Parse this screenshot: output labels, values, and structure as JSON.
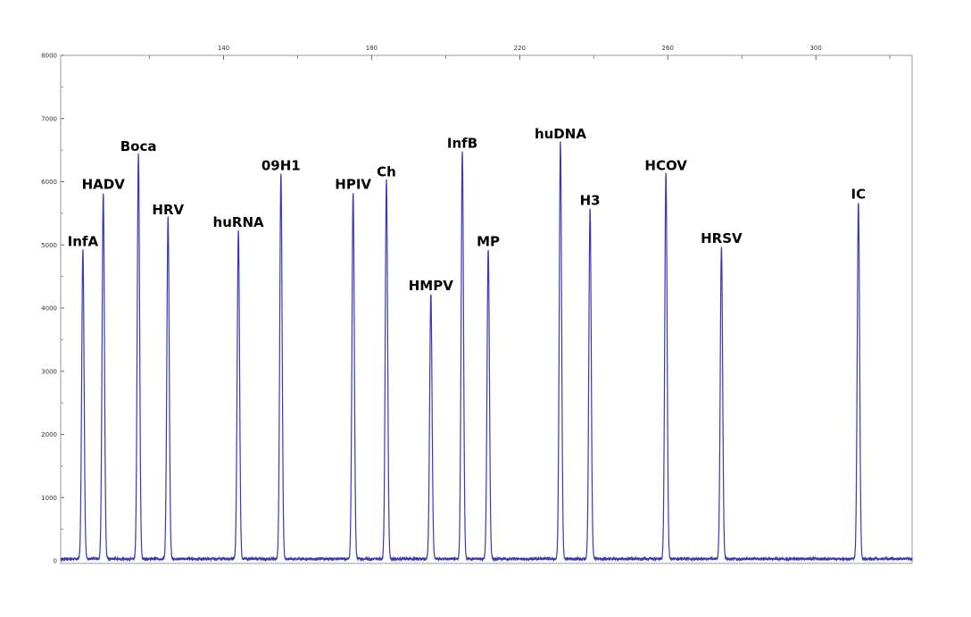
{
  "chart_data": {
    "type": "line",
    "title": "",
    "xlabel": "",
    "ylabel": "",
    "xlim": [
      96,
      326
    ],
    "ylim": [
      0,
      8000
    ],
    "grid": false,
    "legend": "none",
    "x_ticks": [
      "140",
      "180",
      "220",
      "260",
      "300"
    ],
    "y_ticks": [
      "0",
      "1000",
      "2000",
      "3000",
      "4000",
      "5000",
      "6000",
      "7000",
      "8000"
    ],
    "line_color": "#3a3ab0",
    "peaks": [
      {
        "label": "InfA",
        "x": 102,
        "y": 4900
      },
      {
        "label": "HADV",
        "x": 107.5,
        "y": 5800
      },
      {
        "label": "Boca",
        "x": 117,
        "y": 6400
      },
      {
        "label": "HRV",
        "x": 125,
        "y": 5400
      },
      {
        "label": "huRNA",
        "x": 144,
        "y": 5200
      },
      {
        "label": "09H1",
        "x": 155.5,
        "y": 6100
      },
      {
        "label": "HPIV",
        "x": 175,
        "y": 5800
      },
      {
        "label": "Ch",
        "x": 184,
        "y": 6000
      },
      {
        "label": "HMPV",
        "x": 196,
        "y": 4200
      },
      {
        "label": "InfB",
        "x": 204.5,
        "y": 6450
      },
      {
        "label": "MP",
        "x": 211.5,
        "y": 4900
      },
      {
        "label": "huDNA",
        "x": 231,
        "y": 6600
      },
      {
        "label": "H3",
        "x": 239,
        "y": 5550
      },
      {
        "label": "HCOV",
        "x": 259.5,
        "y": 6100
      },
      {
        "label": "HRSV",
        "x": 274.5,
        "y": 4950
      },
      {
        "label": "IC",
        "x": 311.5,
        "y": 5650
      }
    ]
  }
}
